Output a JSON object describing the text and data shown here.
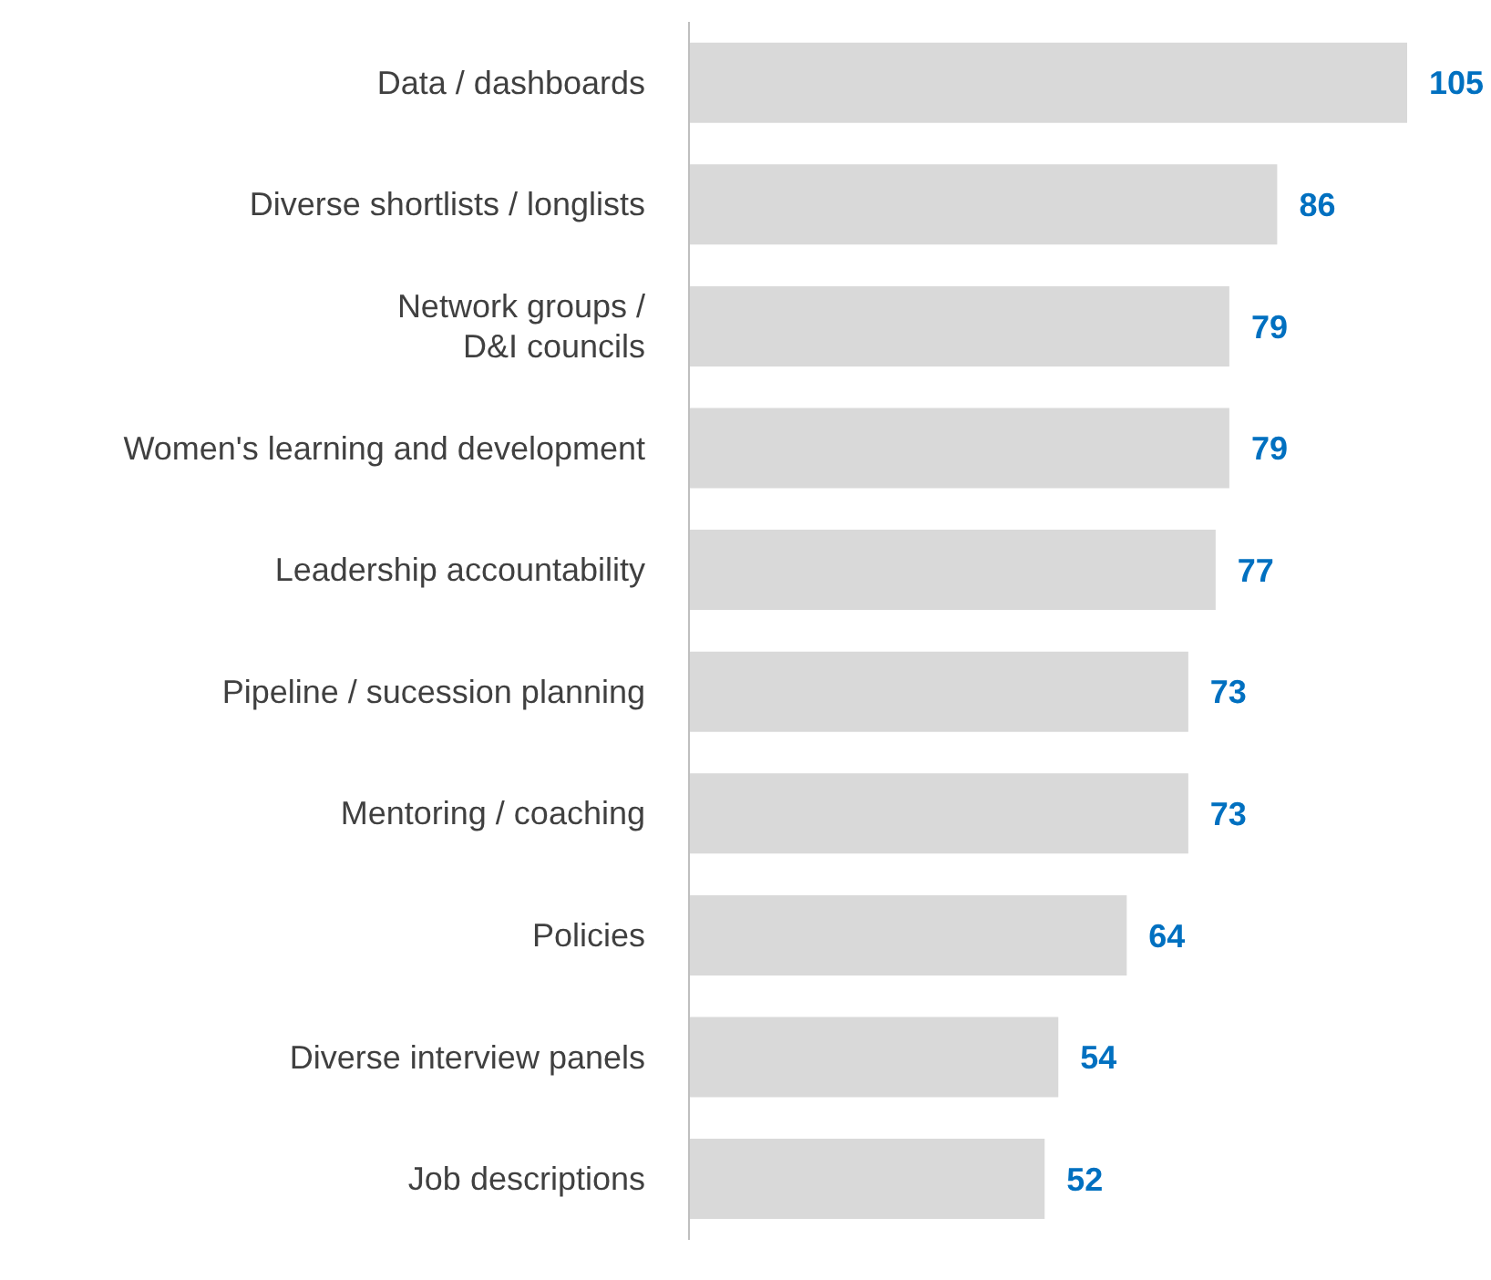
{
  "chart_data": {
    "type": "bar",
    "orientation": "horizontal",
    "categories": [
      "Data / dashboards",
      "Diverse shortlists / longlists",
      "Network groups /\nD&I councils",
      "Women's learning and development",
      "Leadership accountability",
      "Pipeline / sucession planning",
      "Mentoring / coaching",
      "Policies",
      "Diverse interview panels",
      "Job descriptions"
    ],
    "values": [
      105,
      86,
      79,
      79,
      77,
      73,
      73,
      64,
      54,
      52
    ],
    "color": "#d9d9d9",
    "data_labels": true,
    "tick_labels": "y"
  }
}
